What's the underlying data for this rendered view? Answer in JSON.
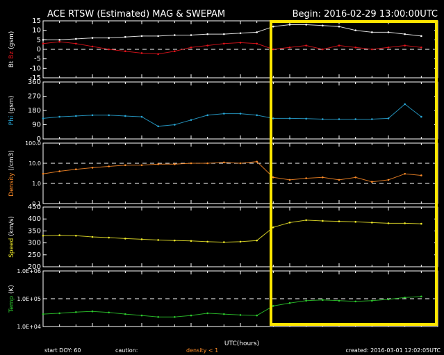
{
  "header": {
    "title": "ACE RTSW (Estimated) MAG & SWEPAM",
    "begin": "Begin: 2016-02-29 13:00:00UTC"
  },
  "footer": {
    "start_doy": "start DOY:  60",
    "caution": "caution:",
    "density_note": "density < 1",
    "created": "created: 2016-03-01 12:02:05UTC",
    "xlabel": "UTC(hours)"
  },
  "colors": {
    "bt": "#ffffff",
    "bz": "#e8141c",
    "phi": "#29a8d8",
    "density": "#ff8c28",
    "speed": "#f0ea2a",
    "temp": "#2ecc2e",
    "highlight": "#ffe600",
    "axes": "#ffffff"
  },
  "chart_data": [
    {
      "type": "scatter",
      "panel": "mag",
      "ylabel_parts": [
        "Bt",
        "Bz",
        "(gsm)"
      ],
      "ylim": [
        -15,
        15
      ],
      "yticks": [
        15,
        10,
        5,
        0,
        -5,
        -10,
        -15
      ],
      "dashed_lines": [
        0
      ],
      "scale": "linear",
      "x_hours": [
        0,
        1,
        2,
        3,
        4,
        5,
        6,
        7,
        8,
        9,
        10,
        11,
        12,
        13,
        14,
        15,
        16,
        17,
        18,
        19,
        20,
        21,
        22,
        23
      ],
      "series": [
        {
          "key": "bt",
          "values": [
            5,
            5,
            5.5,
            6,
            6,
            6.5,
            7,
            7,
            7.5,
            7.5,
            8,
            8,
            8.5,
            9,
            12,
            13,
            13,
            12.5,
            12,
            10,
            9,
            9,
            8,
            7
          ]
        },
        {
          "key": "bz",
          "values": [
            3,
            4,
            3,
            1.5,
            0,
            -1,
            -2,
            -2.5,
            -1,
            1,
            2,
            3,
            3.5,
            3,
            0,
            1,
            2,
            0,
            2,
            1,
            0,
            1,
            2,
            1
          ]
        }
      ]
    },
    {
      "type": "scatter",
      "panel": "phi",
      "ylabel_parts": [
        "Phi",
        "(gsm)"
      ],
      "ylim": [
        0,
        360
      ],
      "yticks": [
        360,
        270,
        180,
        90,
        0
      ],
      "dashed_lines": [],
      "scale": "linear",
      "x_hours": [
        0,
        1,
        2,
        3,
        4,
        5,
        6,
        7,
        8,
        9,
        10,
        11,
        12,
        13,
        14,
        15,
        16,
        17,
        18,
        19,
        20,
        21,
        22,
        23
      ],
      "series": [
        {
          "key": "phi",
          "values": [
            130,
            140,
            145,
            150,
            150,
            145,
            140,
            80,
            90,
            120,
            150,
            160,
            160,
            150,
            130,
            130,
            128,
            125,
            125,
            125,
            125,
            130,
            220,
            140
          ]
        }
      ]
    },
    {
      "type": "scatter",
      "panel": "density",
      "ylabel_parts": [
        "Density",
        "(/cm3)"
      ],
      "ylim": [
        0.1,
        100
      ],
      "yticks": [
        100.0,
        10.0,
        1.0,
        0.1
      ],
      "ytick_labels": [
        "100.0",
        "10.0",
        "1.0",
        "0.1"
      ],
      "dashed_lines": [
        10,
        1
      ],
      "scale": "log",
      "x_hours": [
        0,
        1,
        2,
        3,
        4,
        5,
        6,
        7,
        8,
        9,
        10,
        11,
        12,
        13,
        14,
        15,
        16,
        17,
        18,
        19,
        20,
        21,
        22,
        23
      ],
      "series": [
        {
          "key": "density",
          "values": [
            3,
            4,
            5,
            6,
            7,
            8,
            8,
            9,
            9,
            10,
            10,
            11,
            10,
            12,
            2,
            1.5,
            1.8,
            2,
            1.5,
            2,
            1.2,
            1.5,
            3,
            2.5
          ]
        }
      ]
    },
    {
      "type": "scatter",
      "panel": "speed",
      "ylabel_parts": [
        "Speed",
        "(km/s)"
      ],
      "ylim": [
        200,
        450
      ],
      "yticks": [
        450,
        400,
        350,
        300,
        250,
        200
      ],
      "dashed_lines": [],
      "scale": "linear",
      "x_hours": [
        0,
        1,
        2,
        3,
        4,
        5,
        6,
        7,
        8,
        9,
        10,
        11,
        12,
        13,
        14,
        15,
        16,
        17,
        18,
        19,
        20,
        21,
        22,
        23
      ],
      "series": [
        {
          "key": "speed",
          "values": [
            330,
            332,
            330,
            325,
            322,
            318,
            315,
            312,
            310,
            308,
            305,
            303,
            305,
            310,
            365,
            385,
            395,
            392,
            390,
            388,
            385,
            382,
            382,
            380
          ]
        }
      ]
    },
    {
      "type": "scatter",
      "panel": "temp",
      "ylabel_parts": [
        "Temp",
        "(K)"
      ],
      "ylim": [
        10000,
        1000000
      ],
      "yticks": [
        1000000,
        100000,
        10000
      ],
      "ytick_labels": [
        "1.0E+06",
        "1.0E+05",
        "1.0E+04"
      ],
      "dashed_lines": [
        100000
      ],
      "scale": "log",
      "x_hours": [
        0,
        1,
        2,
        3,
        4,
        5,
        6,
        7,
        8,
        9,
        10,
        11,
        12,
        13,
        14,
        15,
        16,
        17,
        18,
        19,
        20,
        21,
        22,
        23
      ],
      "series": [
        {
          "key": "temp",
          "values": [
            28000,
            30000,
            33000,
            35000,
            32000,
            28000,
            25000,
            22000,
            22000,
            25000,
            30000,
            28000,
            26000,
            25000,
            55000,
            70000,
            85000,
            90000,
            85000,
            80000,
            85000,
            95000,
            110000,
            120000
          ]
        }
      ]
    }
  ]
}
